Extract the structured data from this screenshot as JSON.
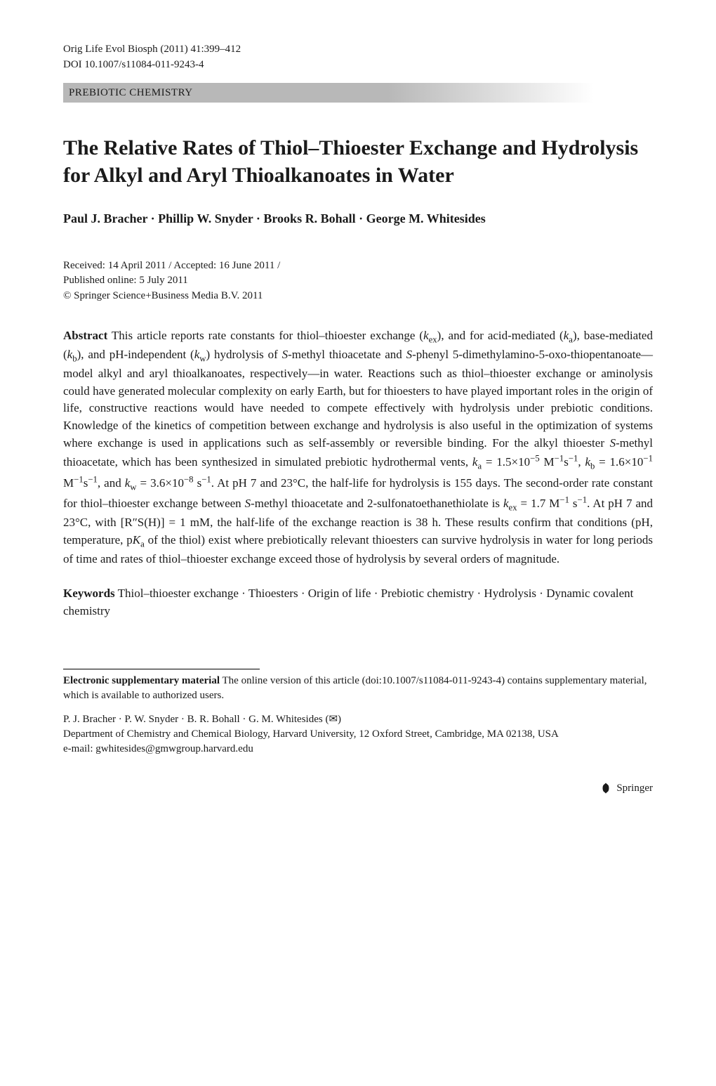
{
  "header": {
    "journal_ref": "Orig Life Evol Biosph (2011) 41:399–412",
    "doi": "DOI 10.1007/s11084-011-9243-4",
    "category": "PREBIOTIC CHEMISTRY"
  },
  "title": "The Relative Rates of Thiol–Thioester Exchange and Hydrolysis for Alkyl and Aryl Thioalkanoates in Water",
  "authors": "Paul J. Bracher · Phillip W. Snyder · Brooks R. Bohall · George M. Whitesides",
  "dates": {
    "received_accepted": "Received: 14 April 2011 / Accepted: 16 June 2011 /",
    "published": "Published online: 5 July 2011"
  },
  "copyright": "© Springer Science+Business Media B.V. 2011",
  "abstract": {
    "label": "Abstract",
    "text_html": "This article reports rate constants for thiol–thioester exchange (<span class=\"italic\">k</span><sub>ex</sub>), and for acid-mediated (<span class=\"italic\">k</span><sub>a</sub>), base-mediated (<span class=\"italic\">k</span><sub>b</sub>), and pH-independent (<span class=\"italic\">k</span><sub>w</sub>) hydrolysis of <span class=\"italic\">S</span>-methyl thioacetate and <span class=\"italic\">S</span>-phenyl 5-dimethylamino-5-oxo-thiopentanoate—model alkyl and aryl thioalkanoates, respectively—in water. Reactions such as thiol–thioester exchange or aminolysis could have generated molecular complexity on early Earth, but for thioesters to have played important roles in the origin of life, constructive reactions would have needed to compete effectively with hydrolysis under prebiotic conditions. Knowledge of the kinetics of competition between exchange and hydrolysis is also useful in the optimization of systems where exchange is used in applications such as self-assembly or reversible binding. For the alkyl thioester <span class=\"italic\">S</span>-methyl thioacetate, which has been synthesized in simulated prebiotic hydrothermal vents, <span class=\"italic\">k</span><sub>a</sub> = 1.5×10<sup>−5</sup> M<sup>−1</sup>s<sup>−1</sup>, <span class=\"italic\">k</span><sub>b</sub> = 1.6×10<sup>−1</sup> M<sup>−1</sup>s<sup>−1</sup>, and <span class=\"italic\">k</span><sub>w</sub> = 3.6×10<sup>−8</sup> s<sup>−1</sup>. At pH 7 and 23°C, the half-life for hydrolysis is 155 days. The second-order rate constant for thiol–thioester exchange between <span class=\"italic\">S</span>-methyl thioacetate and 2-sulfonatoethanethiolate is <span class=\"italic\">k</span><sub>ex</sub> = 1.7 M<sup>−1</sup> s<sup>−1</sup>. At pH 7 and 23°C, with [R″S(H)] = 1 mM, the half-life of the exchange reaction is 38 h. These results confirm that conditions (pH, temperature, p<span class=\"italic\">K</span><sub>a</sub> of the thiol) exist where prebiotically relevant thioesters can survive hydrolysis in water for long periods of time and rates of thiol–thioester exchange exceed those of hydrolysis by several orders of magnitude."
  },
  "keywords": {
    "label": "Keywords",
    "text": "Thiol–thioester exchange · Thioesters · Origin of life · Prebiotic chemistry · Hydrolysis · Dynamic covalent chemistry"
  },
  "supplementary": {
    "label": "Electronic supplementary material",
    "text": "The online version of this article (doi:10.1007/s11084-011-9243-4) contains supplementary material, which is available to authorized users."
  },
  "affiliation": {
    "authors_line": "P. J. Bracher · P. W. Snyder · B. R. Bohall · G. M. Whitesides (✉)",
    "dept": "Department of Chemistry and Chemical Biology, Harvard University, 12 Oxford Street, Cambridge, MA 02138, USA",
    "email": "e-mail: gwhitesides@gmwgroup.harvard.edu"
  },
  "footer": {
    "publisher": "Springer"
  },
  "styles": {
    "background_color": "#ffffff",
    "text_color": "#1a1a1a",
    "category_bar_gradient_start": "#b8b8b8",
    "category_bar_gradient_end": "#ffffff",
    "body_font": "Times New Roman",
    "title_fontsize": 30,
    "author_fontsize": 18,
    "body_fontsize": 17,
    "small_fontsize": 15
  }
}
